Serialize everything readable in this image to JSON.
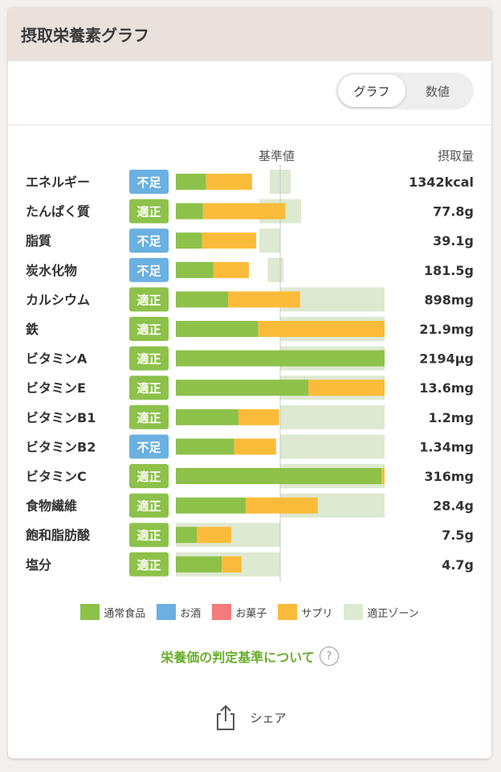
{
  "header": {
    "title": "摂取栄養素グラフ"
  },
  "toggle": {
    "graph_label": "グラフ",
    "value_label": "数値"
  },
  "colors": {
    "regular": "#8dc14a",
    "alcohol": "#6ab0e0",
    "sweets": "#f47b7b",
    "supplement": "#fbbb3a",
    "zone": "#dde9d0",
    "status_low": "#6ab0e0",
    "status_ok": "#8dc14a"
  },
  "chart_data": {
    "type": "bar",
    "orientation": "horizontal",
    "stacked": true,
    "title": "摂取栄養素グラフ",
    "baseline_label": "基準値",
    "amount_header": "摂取量",
    "unit": "% of reference value (estimated)",
    "categories": [
      "エネルギー",
      "たんぱく質",
      "脂質",
      "炭水化物",
      "カルシウム",
      "鉄",
      "ビタミンA",
      "ビタミンE",
      "ビタミンB1",
      "ビタミンB2",
      "ビタミンC",
      "食物繊維",
      "飽和脂肪酸",
      "塩分"
    ],
    "status": [
      "不足",
      "適正",
      "不足",
      "不足",
      "適正",
      "適正",
      "適正",
      "適正",
      "適正",
      "不足",
      "適正",
      "適正",
      "適正",
      "適正"
    ],
    "amounts": [
      "1342kcal",
      "77.8g",
      "39.1g",
      "181.5g",
      "898mg",
      "21.9mg",
      "2194μg",
      "13.6mg",
      "1.2mg",
      "1.34mg",
      "316mg",
      "28.4g",
      "7.5g",
      "4.7g"
    ],
    "series": [
      {
        "name": "通常食品",
        "key": "regular",
        "values": [
          29,
          26,
          25,
          36,
          50,
          79,
          200,
          127,
          60,
          56,
          197,
          67,
          20,
          44
        ]
      },
      {
        "name": "お酒",
        "key": "alcohol",
        "values": [
          0,
          0,
          0,
          0,
          0,
          0,
          0,
          0,
          0,
          0,
          0,
          0,
          0,
          0
        ]
      },
      {
        "name": "お菓子",
        "key": "sweets",
        "values": [
          0,
          0,
          0,
          0,
          0,
          0,
          0,
          0,
          0,
          0,
          0,
          0,
          0,
          0
        ]
      },
      {
        "name": "サプリ",
        "key": "supplement",
        "values": [
          44,
          79,
          52,
          34,
          69,
          121,
          0,
          73,
          39,
          40,
          3,
          69,
          33,
          19
        ]
      }
    ],
    "zone": [
      [
        90,
        110
      ],
      [
        80,
        120
      ],
      [
        80,
        100
      ],
      [
        88,
        103
      ],
      [
        100,
        200
      ],
      [
        100,
        200
      ],
      [
        100,
        200
      ],
      [
        100,
        200
      ],
      [
        100,
        200
      ],
      [
        100,
        200
      ],
      [
        100,
        200
      ],
      [
        100,
        200
      ],
      [
        0,
        100
      ],
      [
        0,
        100
      ]
    ],
    "xlim": [
      0,
      200
    ],
    "legend": [
      "通常食品",
      "お酒",
      "お菓子",
      "サプリ",
      "適正ゾーン"
    ]
  },
  "link": {
    "label": "栄養価の判定基準について",
    "help": "?"
  },
  "share": {
    "label": "シェア"
  }
}
